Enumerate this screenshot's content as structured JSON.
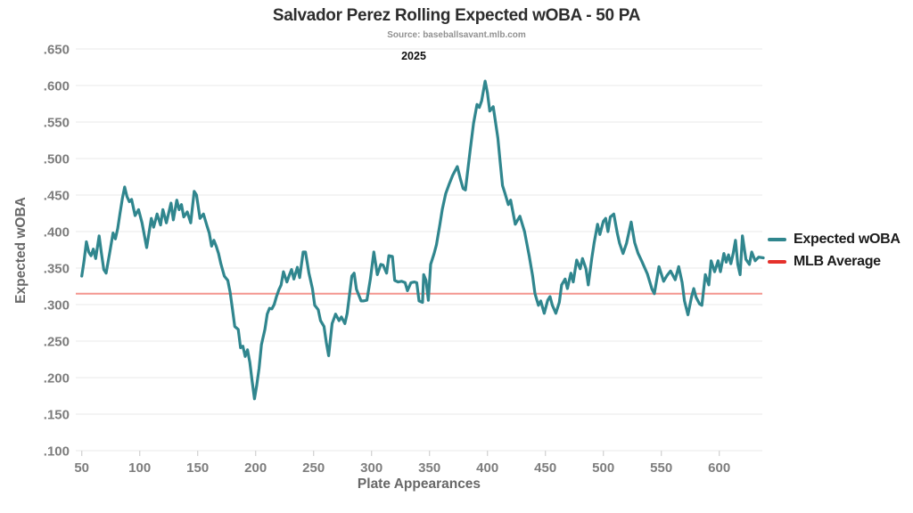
{
  "header": {
    "title": "Salvador Perez Rolling Expected wOBA - 50 PA",
    "source": "Source: baseballsavant.mlb.com",
    "season": "2025"
  },
  "legend": {
    "expected_label": "Expected wOBA",
    "mlb_label": "MLB Average"
  },
  "colors": {
    "expected_line": "#30868e",
    "mlb_avg_chart_line": "#f4958e",
    "mlb_avg_legend_swatch": "#e5312b",
    "grid": "#ededed",
    "tick_mark": "#d4d4d4",
    "tick_label": "#7d7d7d",
    "axis_title": "#686868"
  },
  "chart_data": {
    "type": "line",
    "title": "Salvador Perez Rolling Expected wOBA - 50 PA",
    "xlabel": "Plate Appearances",
    "ylabel": "Expected wOBA",
    "xlim": [
      50,
      638
    ],
    "ylim": [
      0.1,
      0.65
    ],
    "grid": "horizontal-only",
    "legend_position": "right-middle",
    "x_ticks": [
      50,
      100,
      150,
      200,
      250,
      300,
      350,
      400,
      450,
      500,
      550,
      600
    ],
    "y_ticks": [
      {
        "value": 0.1,
        "label": ".100"
      },
      {
        "value": 0.15,
        "label": ".150"
      },
      {
        "value": 0.2,
        "label": ".200"
      },
      {
        "value": 0.25,
        "label": ".250"
      },
      {
        "value": 0.3,
        "label": ".300"
      },
      {
        "value": 0.35,
        "label": ".350"
      },
      {
        "value": 0.4,
        "label": ".400"
      },
      {
        "value": 0.45,
        "label": ".450"
      },
      {
        "value": 0.5,
        "label": ".500"
      },
      {
        "value": 0.55,
        "label": ".550"
      },
      {
        "value": 0.6,
        "label": ".600"
      },
      {
        "value": 0.65,
        "label": ".650"
      }
    ],
    "annotations": [
      {
        "text": "2025",
        "position": "top-center"
      }
    ],
    "series": [
      {
        "name": "Expected wOBA",
        "type": "line",
        "points": [
          [
            50,
            0.339
          ],
          [
            52,
            0.36
          ],
          [
            54,
            0.386
          ],
          [
            56,
            0.372
          ],
          [
            58,
            0.367
          ],
          [
            60,
            0.376
          ],
          [
            62,
            0.363
          ],
          [
            65,
            0.394
          ],
          [
            67,
            0.37
          ],
          [
            69,
            0.348
          ],
          [
            71,
            0.343
          ],
          [
            74,
            0.37
          ],
          [
            77,
            0.398
          ],
          [
            79,
            0.39
          ],
          [
            81,
            0.404
          ],
          [
            83,
            0.425
          ],
          [
            85,
            0.445
          ],
          [
            87,
            0.461
          ],
          [
            89,
            0.448
          ],
          [
            91,
            0.441
          ],
          [
            93,
            0.444
          ],
          [
            96,
            0.422
          ],
          [
            99,
            0.43
          ],
          [
            102,
            0.412
          ],
          [
            104,
            0.395
          ],
          [
            106,
            0.378
          ],
          [
            108,
            0.398
          ],
          [
            110,
            0.418
          ],
          [
            112,
            0.406
          ],
          [
            115,
            0.424
          ],
          [
            118,
            0.409
          ],
          [
            120,
            0.43
          ],
          [
            123,
            0.412
          ],
          [
            127,
            0.439
          ],
          [
            129,
            0.416
          ],
          [
            132,
            0.443
          ],
          [
            134,
            0.43
          ],
          [
            136,
            0.437
          ],
          [
            138,
            0.42
          ],
          [
            141,
            0.427
          ],
          [
            144,
            0.412
          ],
          [
            147,
            0.455
          ],
          [
            149,
            0.45
          ],
          [
            152,
            0.418
          ],
          [
            155,
            0.424
          ],
          [
            158,
            0.408
          ],
          [
            160,
            0.398
          ],
          [
            162,
            0.38
          ],
          [
            164,
            0.388
          ],
          [
            166,
            0.38
          ],
          [
            168,
            0.37
          ],
          [
            170,
            0.356
          ],
          [
            173,
            0.339
          ],
          [
            176,
            0.333
          ],
          [
            178,
            0.317
          ],
          [
            180,
            0.294
          ],
          [
            182,
            0.27
          ],
          [
            185,
            0.266
          ],
          [
            187,
            0.241
          ],
          [
            189,
            0.243
          ],
          [
            191,
            0.229
          ],
          [
            193,
            0.238
          ],
          [
            195,
            0.221
          ],
          [
            197,
            0.195
          ],
          [
            199,
            0.171
          ],
          [
            201,
            0.19
          ],
          [
            203,
            0.213
          ],
          [
            205,
            0.245
          ],
          [
            208,
            0.266
          ],
          [
            210,
            0.287
          ],
          [
            212,
            0.295
          ],
          [
            214,
            0.294
          ],
          [
            216,
            0.3
          ],
          [
            218,
            0.311
          ],
          [
            220,
            0.32
          ],
          [
            222,
            0.327
          ],
          [
            224,
            0.345
          ],
          [
            227,
            0.331
          ],
          [
            229,
            0.34
          ],
          [
            231,
            0.348
          ],
          [
            233,
            0.335
          ],
          [
            236,
            0.351
          ],
          [
            238,
            0.337
          ],
          [
            241,
            0.372
          ],
          [
            243,
            0.372
          ],
          [
            246,
            0.343
          ],
          [
            249,
            0.322
          ],
          [
            251,
            0.299
          ],
          [
            254,
            0.293
          ],
          [
            256,
            0.278
          ],
          [
            259,
            0.27
          ],
          [
            261,
            0.248
          ],
          [
            263,
            0.23
          ],
          [
            266,
            0.274
          ],
          [
            269,
            0.287
          ],
          [
            272,
            0.278
          ],
          [
            274,
            0.283
          ],
          [
            277,
            0.274
          ],
          [
            279,
            0.288
          ],
          [
            283,
            0.339
          ],
          [
            285,
            0.343
          ],
          [
            287,
            0.321
          ],
          [
            291,
            0.305
          ],
          [
            293,
            0.305
          ],
          [
            296,
            0.306
          ],
          [
            299,
            0.335
          ],
          [
            302,
            0.372
          ],
          [
            305,
            0.341
          ],
          [
            308,
            0.355
          ],
          [
            310,
            0.354
          ],
          [
            313,
            0.343
          ],
          [
            315,
            0.367
          ],
          [
            318,
            0.366
          ],
          [
            320,
            0.333
          ],
          [
            323,
            0.331
          ],
          [
            326,
            0.332
          ],
          [
            329,
            0.33
          ],
          [
            331,
            0.319
          ],
          [
            334,
            0.33
          ],
          [
            337,
            0.331
          ],
          [
            339,
            0.33
          ],
          [
            341,
            0.305
          ],
          [
            344,
            0.303
          ],
          [
            345,
            0.341
          ],
          [
            347,
            0.333
          ],
          [
            349,
            0.306
          ],
          [
            351,
            0.355
          ],
          [
            354,
            0.37
          ],
          [
            356,
            0.382
          ],
          [
            359,
            0.41
          ],
          [
            361,
            0.43
          ],
          [
            364,
            0.452
          ],
          [
            367,
            0.465
          ],
          [
            370,
            0.477
          ],
          [
            374,
            0.489
          ],
          [
            377,
            0.47
          ],
          [
            379,
            0.459
          ],
          [
            381,
            0.457
          ],
          [
            385,
            0.51
          ],
          [
            388,
            0.548
          ],
          [
            391,
            0.574
          ],
          [
            393,
            0.57
          ],
          [
            395,
            0.579
          ],
          [
            398,
            0.606
          ],
          [
            400,
            0.59
          ],
          [
            402,
            0.565
          ],
          [
            405,
            0.571
          ],
          [
            409,
            0.528
          ],
          [
            411,
            0.495
          ],
          [
            413,
            0.463
          ],
          [
            415,
            0.453
          ],
          [
            418,
            0.437
          ],
          [
            420,
            0.443
          ],
          [
            424,
            0.41
          ],
          [
            428,
            0.421
          ],
          [
            432,
            0.4
          ],
          [
            436,
            0.367
          ],
          [
            439,
            0.339
          ],
          [
            441,
            0.315
          ],
          [
            444,
            0.299
          ],
          [
            446,
            0.305
          ],
          [
            449,
            0.288
          ],
          [
            452,
            0.306
          ],
          [
            454,
            0.311
          ],
          [
            456,
            0.299
          ],
          [
            459,
            0.288
          ],
          [
            462,
            0.303
          ],
          [
            464,
            0.327
          ],
          [
            467,
            0.335
          ],
          [
            469,
            0.322
          ],
          [
            472,
            0.343
          ],
          [
            474,
            0.331
          ],
          [
            477,
            0.361
          ],
          [
            480,
            0.349
          ],
          [
            482,
            0.363
          ],
          [
            485,
            0.349
          ],
          [
            487,
            0.327
          ],
          [
            490,
            0.363
          ],
          [
            492,
            0.384
          ],
          [
            495,
            0.41
          ],
          [
            497,
            0.396
          ],
          [
            500,
            0.414
          ],
          [
            502,
            0.418
          ],
          [
            504,
            0.4
          ],
          [
            506,
            0.42
          ],
          [
            509,
            0.424
          ],
          [
            512,
            0.398
          ],
          [
            514,
            0.384
          ],
          [
            517,
            0.37
          ],
          [
            520,
            0.384
          ],
          [
            524,
            0.413
          ],
          [
            527,
            0.385
          ],
          [
            530,
            0.37
          ],
          [
            533,
            0.36
          ],
          [
            538,
            0.342
          ],
          [
            542,
            0.321
          ],
          [
            544,
            0.315
          ],
          [
            548,
            0.352
          ],
          [
            552,
            0.332
          ],
          [
            555,
            0.34
          ],
          [
            558,
            0.346
          ],
          [
            562,
            0.334
          ],
          [
            565,
            0.352
          ],
          [
            568,
            0.33
          ],
          [
            570,
            0.305
          ],
          [
            573,
            0.286
          ],
          [
            576,
            0.31
          ],
          [
            578,
            0.322
          ],
          [
            580,
            0.31
          ],
          [
            583,
            0.301
          ],
          [
            585,
            0.299
          ],
          [
            588,
            0.341
          ],
          [
            591,
            0.327
          ],
          [
            593,
            0.36
          ],
          [
            596,
            0.345
          ],
          [
            599,
            0.36
          ],
          [
            601,
            0.345
          ],
          [
            604,
            0.37
          ],
          [
            606,
            0.358
          ],
          [
            608,
            0.368
          ],
          [
            610,
            0.356
          ],
          [
            612,
            0.37
          ],
          [
            614,
            0.388
          ],
          [
            616,
            0.355
          ],
          [
            618,
            0.341
          ],
          [
            620,
            0.394
          ],
          [
            623,
            0.362
          ],
          [
            626,
            0.355
          ],
          [
            628,
            0.372
          ],
          [
            631,
            0.36
          ],
          [
            634,
            0.365
          ],
          [
            638,
            0.364
          ]
        ]
      },
      {
        "name": "MLB Average",
        "type": "horizontal-line",
        "value": 0.315
      }
    ]
  }
}
